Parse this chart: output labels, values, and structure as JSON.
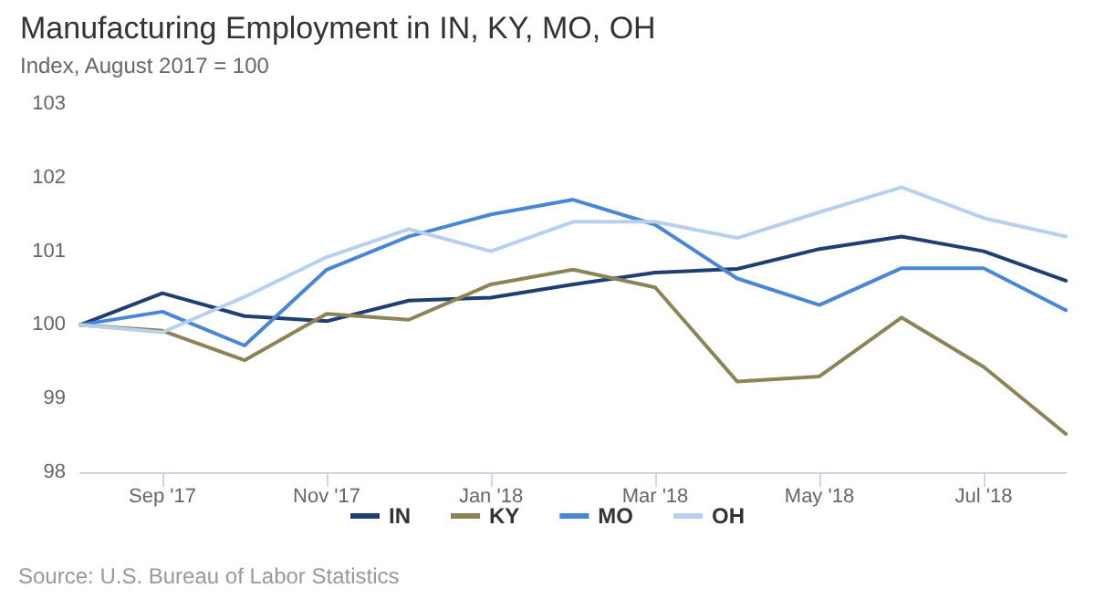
{
  "chart_data": {
    "type": "line",
    "title": "Manufacturing Employment in IN, KY, MO, OH",
    "subtitle": "Index, August 2017 = 100",
    "categories": [
      null,
      "Sep '17",
      null,
      "Nov '17",
      null,
      "Jan '18",
      null,
      "Mar '18",
      null,
      "May '18",
      null,
      "Jul '18",
      null
    ],
    "series": [
      {
        "name": "IN",
        "color": "#1f3f73",
        "values": [
          100,
          100.43,
          100.12,
          100.05,
          100.33,
          100.37,
          100.55,
          100.71,
          100.76,
          101.03,
          101.2,
          101.0,
          100.6
        ]
      },
      {
        "name": "KY",
        "color": "#8b8456",
        "values": [
          100,
          99.92,
          99.52,
          100.15,
          100.07,
          100.55,
          100.75,
          100.51,
          99.23,
          99.3,
          100.1,
          99.43,
          98.52
        ]
      },
      {
        "name": "MO",
        "color": "#4a86d6",
        "values": [
          100,
          100.18,
          99.72,
          100.75,
          101.2,
          101.5,
          101.7,
          101.36,
          100.63,
          100.27,
          100.77,
          100.77,
          100.2
        ]
      },
      {
        "name": "OH",
        "color": "#b7d0ee",
        "values": [
          100,
          99.9,
          100.38,
          100.92,
          101.3,
          101.0,
          101.4,
          101.4,
          101.18,
          101.53,
          101.87,
          101.45,
          101.2
        ]
      }
    ],
    "ylim": [
      98,
      103
    ],
    "yticks": [
      98,
      99,
      100,
      101,
      102,
      103
    ],
    "grid": false,
    "legend": "bottom",
    "marker": "none",
    "line_style": "solid",
    "annotations": [
      "Source: U.S. Bureau of Labor Statistics"
    ]
  }
}
